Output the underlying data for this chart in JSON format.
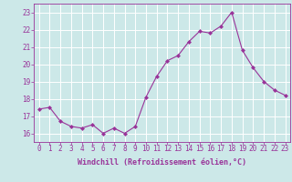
{
  "x": [
    0,
    1,
    2,
    3,
    4,
    5,
    6,
    7,
    8,
    9,
    10,
    11,
    12,
    13,
    14,
    15,
    16,
    17,
    18,
    19,
    20,
    21,
    22,
    23
  ],
  "y": [
    17.4,
    17.5,
    16.7,
    16.4,
    16.3,
    16.5,
    16.0,
    16.3,
    16.0,
    16.4,
    18.1,
    19.3,
    20.2,
    20.5,
    21.3,
    21.9,
    21.8,
    22.2,
    23.0,
    20.8,
    19.8,
    19.0,
    18.5,
    18.2
  ],
  "line_color": "#993399",
  "marker": "D",
  "marker_size": 2.0,
  "bg_color": "#cce8e8",
  "grid_color": "#ffffff",
  "tick_color": "#993399",
  "xlabel": "Windchill (Refroidissement éolien,°C)",
  "ylim": [
    15.5,
    23.5
  ],
  "xlim": [
    -0.5,
    23.5
  ],
  "yticks": [
    16,
    17,
    18,
    19,
    20,
    21,
    22,
    23
  ],
  "xticks": [
    0,
    1,
    2,
    3,
    4,
    5,
    6,
    7,
    8,
    9,
    10,
    11,
    12,
    13,
    14,
    15,
    16,
    17,
    18,
    19,
    20,
    21,
    22,
    23
  ],
  "tick_fontsize": 5.5,
  "xlabel_fontsize": 6.0
}
